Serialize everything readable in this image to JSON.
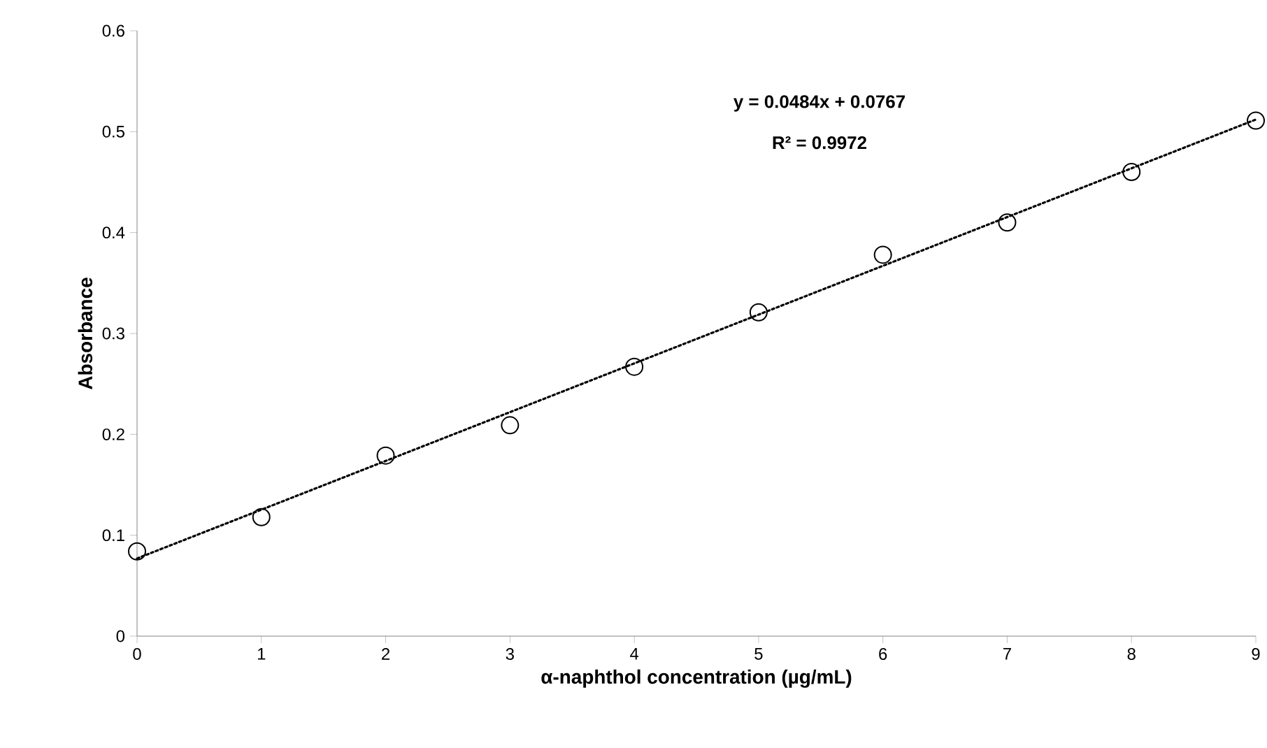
{
  "chart_data": {
    "type": "scatter",
    "xlabel": "α-naphthol concentration (µg/mL)",
    "ylabel": "Absorbance",
    "annotations": [
      "y = 0.0484x + 0.0767",
      "R² = 0.9972"
    ],
    "series": [
      {
        "color": "#000000",
        "marker": "circle",
        "x": [
          0,
          1,
          2,
          3,
          4,
          5,
          6,
          7,
          8,
          9
        ],
        "values": [
          0.084,
          0.118,
          0.179,
          0.209,
          0.267,
          0.321,
          0.378,
          0.41,
          0.46,
          0.511
        ]
      },
      {
        "type": "line",
        "color": "#000000",
        "marker": "none",
        "line_style": "dotted",
        "x": [
          0,
          9
        ],
        "values": [
          0.077,
          0.512
        ]
      }
    ],
    "xlim": [
      0,
      9
    ],
    "xticks": [
      0,
      1,
      2,
      3,
      4,
      5,
      6,
      7,
      8,
      9
    ],
    "ylim": [
      0,
      0.6
    ],
    "yticks": [
      0,
      0.1,
      0.2,
      0.3,
      0.4,
      0.5,
      0.6
    ],
    "grid": false
  }
}
